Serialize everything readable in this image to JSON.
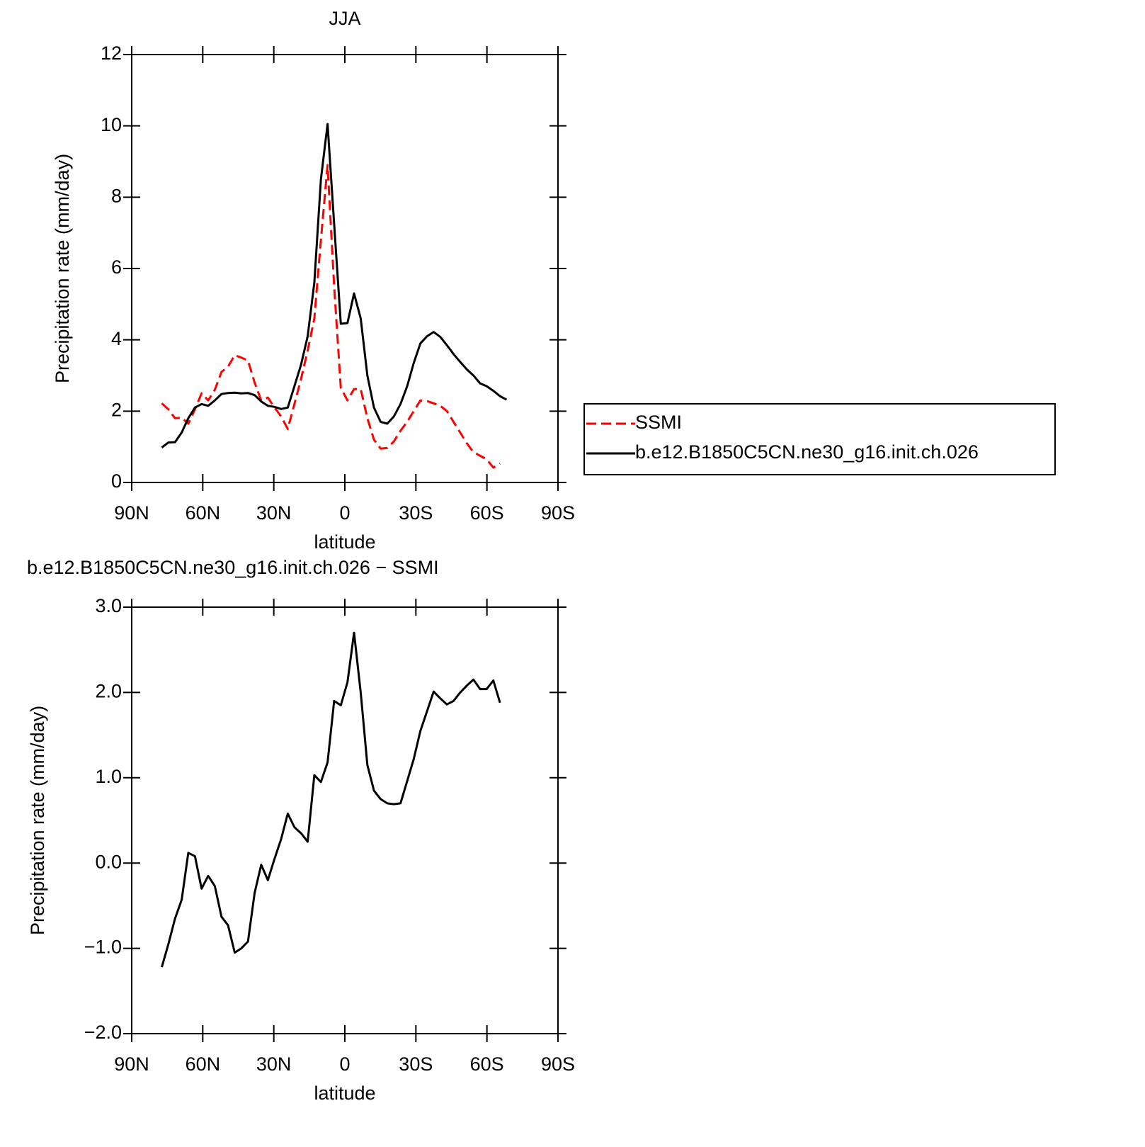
{
  "chart_data": [
    {
      "type": "line",
      "title": "JJA",
      "xlabel": "latitude",
      "ylabel": "Precipitation rate (mm/day)",
      "x": [
        77.3,
        74.5,
        71.7,
        68.9,
        66.1,
        63.3,
        60.5,
        57.7,
        54.9,
        52.1,
        49.3,
        46.5,
        43.7,
        40.9,
        38.1,
        35.3,
        32.5,
        29.7,
        26.9,
        24.1,
        21.3,
        18.5,
        15.7,
        12.9,
        10.1,
        7.3,
        4.5,
        1.7,
        -1.1,
        -3.9,
        -6.7,
        -9.5,
        -12.3,
        -15.1,
        -17.9,
        -20.7,
        -23.5,
        -26.3,
        -29.1,
        -31.9,
        -34.7,
        -37.5,
        -40.3,
        -43.1,
        -45.9,
        -48.7,
        -51.5,
        -54.3,
        -57.1,
        -59.9,
        -62.7,
        -65.5,
        -68.3
      ],
      "series": [
        {
          "name": "SSMI",
          "color": "#ff0000",
          "dashed": true,
          "values": [
            2.22,
            2.05,
            1.8,
            1.82,
            1.65,
            2.05,
            2.5,
            2.3,
            2.6,
            3.1,
            3.25,
            3.57,
            3.5,
            3.42,
            2.8,
            2.3,
            2.38,
            2.1,
            1.85,
            1.5,
            2.2,
            2.9,
            3.7,
            4.6,
            6.8,
            8.9,
            5.5,
            2.65,
            2.3,
            2.62,
            2.62,
            1.8,
            1.2,
            0.95,
            0.97,
            1.15,
            1.45,
            1.7,
            2.0,
            2.3,
            2.28,
            2.22,
            2.15,
            2.0,
            1.7,
            1.4,
            1.1,
            0.85,
            0.75,
            0.65,
            0.42,
            0.53,
            null
          ]
        },
        {
          "name": "b.e12.B1850C5CN.ne30_g16.init.ch.026",
          "color": "#000000",
          "dashed": false,
          "values": [
            0.98,
            1.12,
            1.13,
            1.4,
            1.8,
            2.1,
            2.2,
            2.15,
            2.3,
            2.48,
            2.51,
            2.52,
            2.5,
            2.51,
            2.45,
            2.27,
            2.15,
            2.12,
            2.06,
            2.1,
            2.7,
            3.3,
            4.1,
            5.6,
            8.5,
            10.05,
            7.25,
            4.45,
            4.47,
            5.3,
            4.6,
            3.0,
            2.1,
            1.7,
            1.65,
            1.85,
            2.2,
            2.7,
            3.35,
            3.9,
            4.1,
            4.22,
            4.08,
            3.85,
            3.6,
            3.38,
            3.17,
            3.0,
            2.78,
            2.7,
            2.57,
            2.42,
            2.32
          ]
        }
      ],
      "xlim": [
        90,
        -90
      ],
      "xticks": [
        {
          "value": 90,
          "label": "90N"
        },
        {
          "value": 60,
          "label": "60N"
        },
        {
          "value": 30,
          "label": "30N"
        },
        0,
        {
          "value": -30,
          "label": "30S"
        },
        {
          "value": -60,
          "label": "60S"
        },
        {
          "value": -90,
          "label": "90S"
        }
      ],
      "ylim": [
        0,
        12
      ],
      "yticks": [
        0,
        2,
        4,
        6,
        8,
        10,
        12
      ],
      "legend": "right"
    },
    {
      "type": "line",
      "title": "b.e12.B1850C5CN.ne30_g16.init.ch.026 − SSMI",
      "xlabel": "latitude",
      "ylabel": "Precipitation rate (mm/day)",
      "x": [
        77.3,
        74.5,
        71.7,
        68.9,
        66.1,
        63.3,
        60.5,
        57.7,
        54.9,
        52.1,
        49.3,
        46.5,
        43.7,
        40.9,
        38.1,
        35.3,
        32.5,
        29.7,
        26.9,
        24.1,
        21.3,
        18.5,
        15.7,
        12.9,
        10.1,
        7.3,
        4.5,
        1.7,
        -1.1,
        -3.9,
        -6.7,
        -9.5,
        -12.3,
        -15.1,
        -17.9,
        -20.7,
        -23.5,
        -26.3,
        -29.1,
        -31.9,
        -34.7,
        -37.5,
        -40.3,
        -43.1,
        -45.9,
        -48.7,
        -51.5,
        -54.3,
        -57.1,
        -59.9,
        -62.7,
        -65.5,
        -68.3
      ],
      "color": "#000000",
      "values": [
        -1.22,
        -0.95,
        -0.65,
        -0.43,
        0.12,
        0.08,
        -0.3,
        -0.15,
        -0.27,
        -0.63,
        -0.73,
        -1.05,
        -1.0,
        -0.92,
        -0.35,
        -0.02,
        -0.2,
        0.05,
        0.28,
        0.58,
        0.42,
        0.35,
        0.25,
        1.03,
        0.95,
        1.18,
        1.9,
        1.85,
        2.12,
        2.7,
        2.0,
        1.15,
        0.85,
        0.75,
        0.7,
        0.69,
        0.7,
        0.96,
        1.22,
        1.55,
        1.78,
        2.01,
        1.93,
        1.86,
        1.9,
        2.0,
        2.08,
        2.15,
        2.04,
        2.04,
        2.14,
        1.88,
        null
      ],
      "xlim": [
        90,
        -90
      ],
      "xticks": [
        {
          "value": 90,
          "label": "90N"
        },
        {
          "value": 60,
          "label": "60N"
        },
        {
          "value": 30,
          "label": "30N"
        },
        0,
        {
          "value": -30,
          "label": "30S"
        },
        {
          "value": -60,
          "label": "60S"
        },
        {
          "value": -90,
          "label": "90S"
        }
      ],
      "ylim": [
        -2,
        3
      ],
      "yticks": [
        {
          "value": -2,
          "label": "−2.0"
        },
        {
          "value": -1,
          "label": "−1.0"
        },
        {
          "value": 0,
          "label": "0.0"
        },
        {
          "value": 1,
          "label": "1.0"
        },
        {
          "value": 2,
          "label": "2.0"
        },
        {
          "value": 3,
          "label": "3.0"
        }
      ]
    }
  ]
}
